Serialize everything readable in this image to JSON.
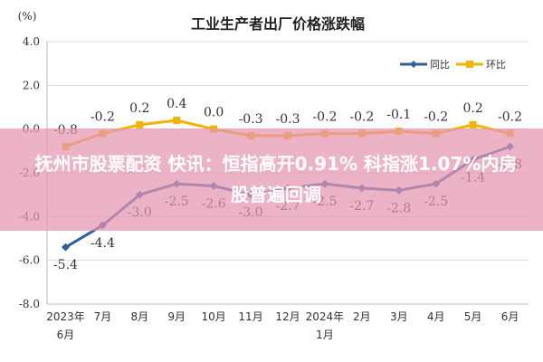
{
  "chart_data": {
    "type": "line",
    "title": "工业生产者出厂价格涨跌幅",
    "unit": "(%)",
    "yticks": [
      "4.0",
      "2.0",
      "0.0",
      "-2.0",
      "-4.0",
      "-6.0",
      "-8.0"
    ],
    "ylim": [
      -8,
      4
    ],
    "categories": [
      {
        "l1": "2023年",
        "l2": "6月"
      },
      {
        "l1": "7月",
        "l2": ""
      },
      {
        "l1": "8月",
        "l2": ""
      },
      {
        "l1": "9月",
        "l2": ""
      },
      {
        "l1": "10月",
        "l2": ""
      },
      {
        "l1": "11月",
        "l2": ""
      },
      {
        "l1": "12月",
        "l2": ""
      },
      {
        "l1": "2024年",
        "l2": "1月"
      },
      {
        "l1": "2月",
        "l2": ""
      },
      {
        "l1": "3月",
        "l2": ""
      },
      {
        "l1": "4月",
        "l2": ""
      },
      {
        "l1": "5月",
        "l2": ""
      },
      {
        "l1": "6月",
        "l2": ""
      }
    ],
    "series": [
      {
        "name": "同比",
        "color": "#2e5f9e",
        "values": [
          -5.4,
          -4.4,
          -3.0,
          -2.5,
          -2.6,
          -3.0,
          -2.7,
          -2.5,
          -2.7,
          -2.8,
          -2.5,
          -1.4,
          -0.8
        ],
        "labels": [
          "-5.4",
          "-4.4",
          "-3.0",
          "-2.5",
          "-2.6",
          "-3.0",
          "-2.7",
          "-2.5",
          "-2.7",
          "-2.8",
          "-2.5",
          "-1.4",
          "-0.8"
        ]
      },
      {
        "name": "环比",
        "color": "#f2b200",
        "values": [
          -0.8,
          -0.2,
          0.2,
          0.4,
          0.0,
          -0.3,
          -0.3,
          -0.2,
          -0.2,
          -0.1,
          -0.2,
          0.2,
          -0.2
        ],
        "labels": [
          "-0.8",
          "-0.2",
          "0.2",
          "0.4",
          "0.0",
          "-0.3",
          "-0.3",
          "-0.2",
          "-0.2",
          "-0.1",
          "-0.2",
          "0.2",
          "-0.2"
        ]
      }
    ],
    "grid": true,
    "legend": "top-right"
  },
  "overlay": {
    "text": "抚州市股票配资 快讯：恒指高开0.91% 科指涨1.07%内房股普遍回调"
  }
}
